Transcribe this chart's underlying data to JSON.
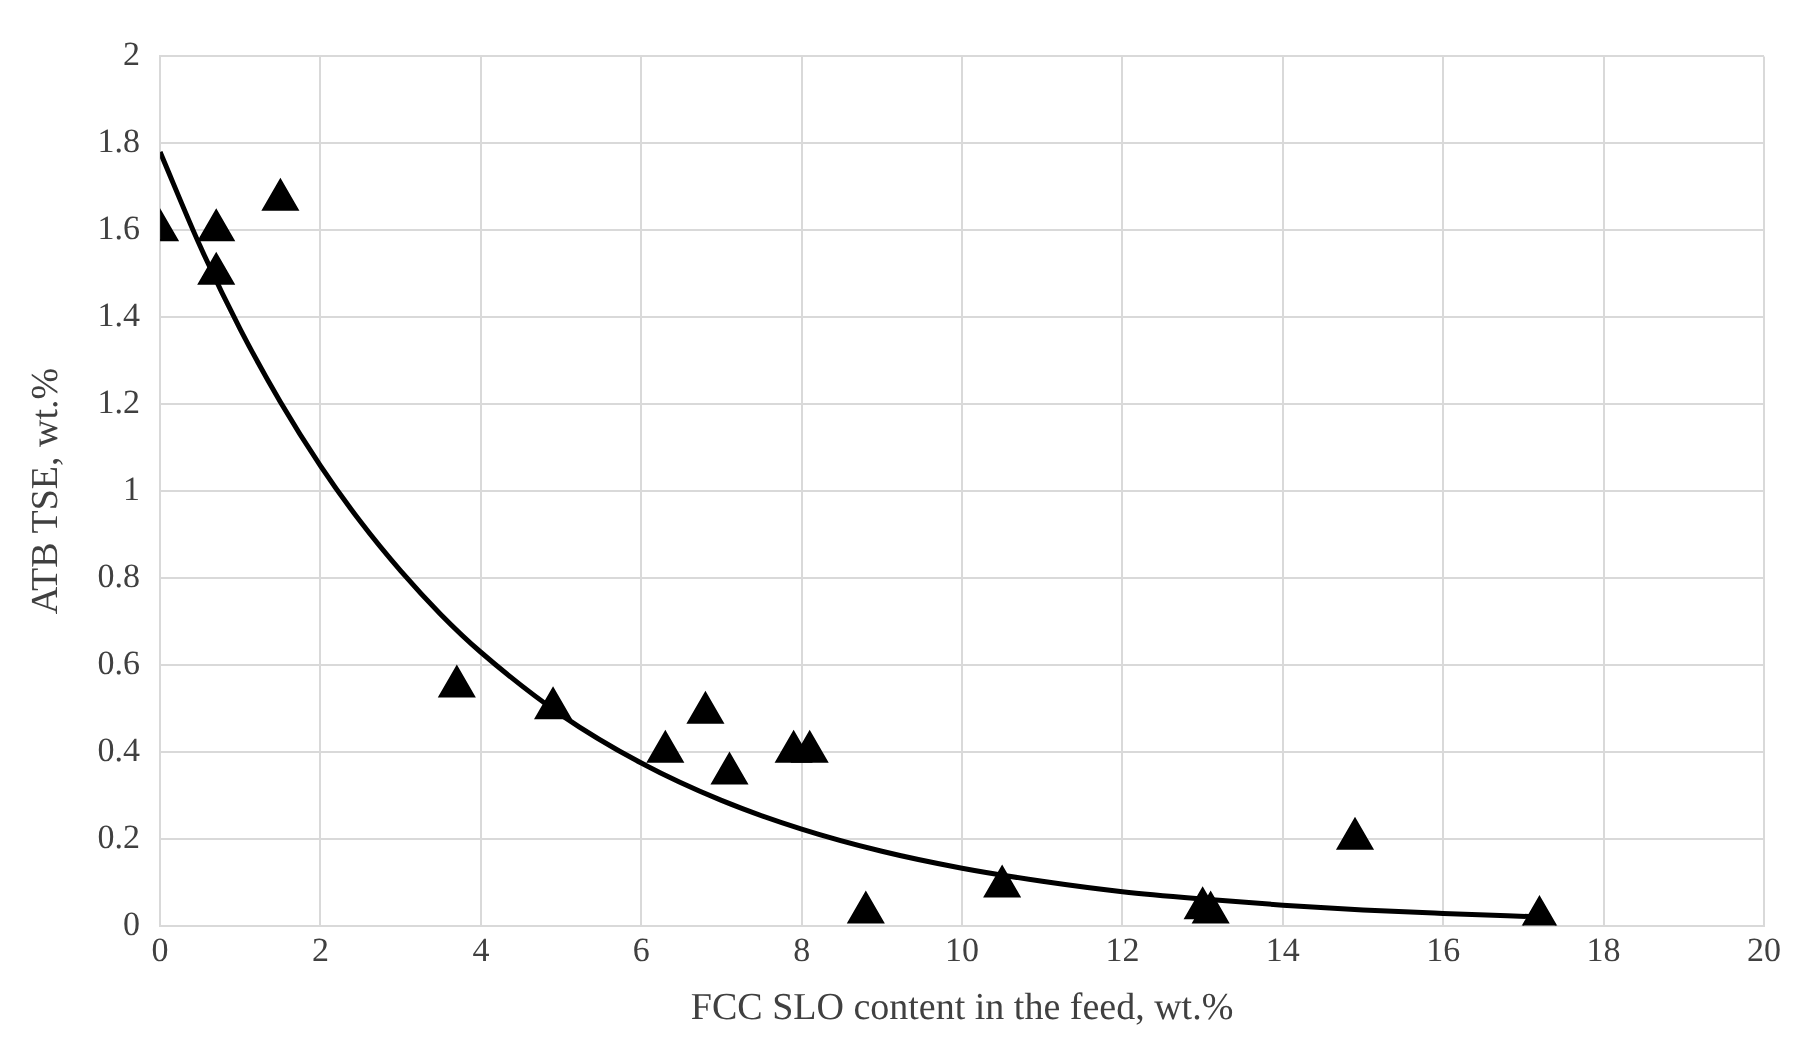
{
  "chart_data": {
    "type": "scatter",
    "xlabel": "FCC SLO content in the feed, wt.%",
    "ylabel": "ATB TSE, wt.%",
    "xlim": [
      0,
      20
    ],
    "xticks": [
      0,
      2,
      4,
      6,
      8,
      10,
      12,
      14,
      16,
      18,
      20
    ],
    "ylim": [
      0,
      2
    ],
    "yticks": [
      0,
      0.2,
      0.4,
      0.6,
      0.8,
      1,
      1.2,
      1.4,
      1.6,
      1.8,
      2
    ],
    "grid": true,
    "marker": "triangle",
    "series": [
      {
        "color": "#000000",
        "x": [
          0,
          0.7,
          0.7,
          1.5,
          3.7,
          4.9,
          6.3,
          6.8,
          7.1,
          7.9,
          8.1,
          8.8,
          10.5,
          13.0,
          13.1,
          14.9,
          17.2
        ],
        "values": [
          1.6,
          1.6,
          1.5,
          1.67,
          0.55,
          0.5,
          0.4,
          0.49,
          0.35,
          0.4,
          0.4,
          0.03,
          0.09,
          0.04,
          0.03,
          0.2,
          0.02
        ]
      },
      {
        "type": "line",
        "marker": "none",
        "color": "#000000",
        "x": [
          0,
          0.5,
          1,
          1.5,
          2,
          2.5,
          3,
          3.5,
          4,
          5,
          6,
          7,
          8,
          9,
          10,
          11,
          12,
          13,
          14,
          15,
          16,
          17.2
        ],
        "values": [
          1.78,
          1.563,
          1.372,
          1.205,
          1.058,
          0.929,
          0.816,
          0.716,
          0.629,
          0.485,
          0.374,
          0.288,
          0.222,
          0.171,
          0.132,
          0.102,
          0.078,
          0.061,
          0.047,
          0.036,
          0.028,
          0.02
        ]
      }
    ]
  }
}
